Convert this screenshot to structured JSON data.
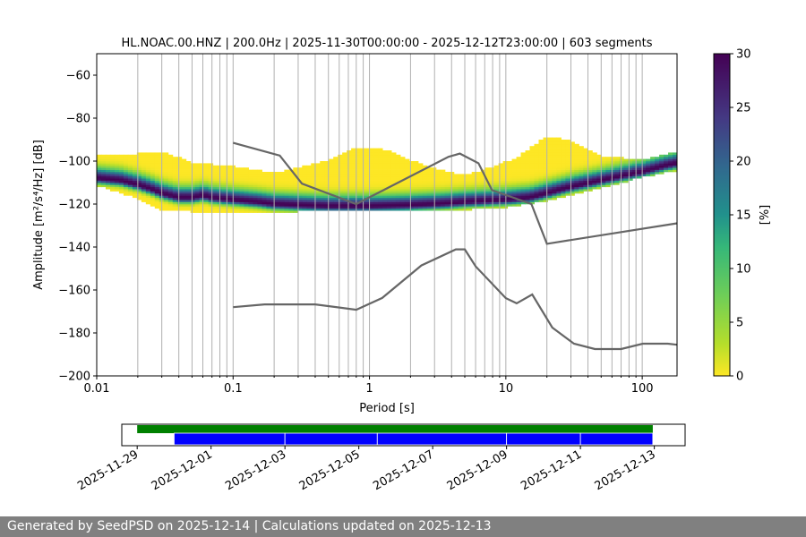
{
  "chart_data": {
    "type": "heatmap",
    "title": "HL.NOAC.00.HNZ | 200.0Hz | 2025-11-30T00:00:00 - 2025-12-12T23:00:00 | 603 segments",
    "xlabel": "Period [s]",
    "ylabel": "Amplitude [m²/s⁴/Hz] [dB]",
    "xscale": "log",
    "xlim": [
      0.01,
      180
    ],
    "ylim": [
      -200,
      -50
    ],
    "x_ticks": [
      {
        "value": 0.01,
        "label": "0.01"
      },
      {
        "value": 0.1,
        "label": "0.1"
      },
      {
        "value": 1,
        "label": "1"
      },
      {
        "value": 10,
        "label": "10"
      },
      {
        "value": 100,
        "label": "100"
      }
    ],
    "y_ticks": [
      -200,
      -180,
      -160,
      -140,
      -120,
      -100,
      -80,
      -60
    ],
    "grid": "vertical minor gridlines on log period axis",
    "colorbar": {
      "label": "[%]",
      "range": [
        0,
        30
      ],
      "ticks": [
        0,
        5,
        10,
        15,
        20,
        25,
        30
      ],
      "colormap": "viridis reversed"
    },
    "psd_mode": [
      [
        0.01,
        -108
      ],
      [
        0.015,
        -109
      ],
      [
        0.02,
        -111
      ],
      [
        0.025,
        -113
      ],
      [
        0.03,
        -115
      ],
      [
        0.04,
        -117
      ],
      [
        0.05,
        -117
      ],
      [
        0.06,
        -116
      ],
      [
        0.07,
        -117
      ],
      [
        0.1,
        -118
      ],
      [
        0.15,
        -119
      ],
      [
        0.2,
        -120
      ],
      [
        0.3,
        -120.5
      ],
      [
        0.5,
        -121
      ],
      [
        1,
        -121
      ],
      [
        2,
        -120.5
      ],
      [
        3,
        -120
      ],
      [
        4,
        -119.5
      ],
      [
        5,
        -119
      ],
      [
        7,
        -118.5
      ],
      [
        10,
        -118
      ],
      [
        15,
        -117
      ],
      [
        20,
        -115
      ],
      [
        30,
        -112
      ],
      [
        50,
        -109
      ],
      [
        70,
        -107
      ],
      [
        100,
        -105
      ],
      [
        150,
        -102
      ],
      [
        180,
        -101
      ]
    ],
    "psd_upper_extent": [
      [
        0.01,
        -97
      ],
      [
        0.02,
        -97
      ],
      [
        0.03,
        -96
      ],
      [
        0.05,
        -101
      ],
      [
        0.1,
        -103
      ],
      [
        0.2,
        -106
      ],
      [
        0.5,
        -100
      ],
      [
        0.8,
        -94
      ],
      [
        1,
        -94
      ],
      [
        1.5,
        -96
      ],
      [
        2,
        -100
      ],
      [
        3,
        -104
      ],
      [
        5,
        -107
      ],
      [
        8,
        -103
      ],
      [
        12,
        -99
      ],
      [
        20,
        -89
      ],
      [
        30,
        -91
      ],
      [
        50,
        -98
      ],
      [
        100,
        -100
      ],
      [
        180,
        -96
      ]
    ],
    "psd_lower_extent": [
      [
        0.01,
        -111
      ],
      [
        0.02,
        -117
      ],
      [
        0.03,
        -123
      ],
      [
        0.05,
        -123
      ],
      [
        0.1,
        -124
      ],
      [
        0.3,
        -123
      ],
      [
        1,
        -123
      ],
      [
        3,
        -123
      ],
      [
        10,
        -121
      ],
      [
        20,
        -118
      ],
      [
        50,
        -112
      ],
      [
        100,
        -107
      ],
      [
        180,
        -104
      ]
    ],
    "noise_models": [
      {
        "name": "",
        "points": [
          [
            0.1,
            -91.5
          ],
          [
            0.22,
            -97.4
          ],
          [
            0.32,
            -110.5
          ],
          [
            0.8,
            -120
          ],
          [
            3.8,
            -98
          ],
          [
            4.6,
            -96.5
          ],
          [
            6.3,
            -101
          ],
          [
            7.9,
            -113.5
          ],
          [
            15.4,
            -120
          ],
          [
            20,
            -138.5
          ],
          [
            354.8,
            -126
          ]
        ]
      },
      {
        "name": "",
        "points": [
          [
            0.1,
            -168
          ],
          [
            0.17,
            -166.7
          ],
          [
            0.4,
            -166.7
          ],
          [
            0.8,
            -169.2
          ],
          [
            1.24,
            -163.7
          ],
          [
            2.4,
            -148.6
          ],
          [
            4.3,
            -141.1
          ],
          [
            5.0,
            -141.1
          ],
          [
            6.0,
            -149
          ],
          [
            10.0,
            -163.8
          ],
          [
            12.0,
            -166.2
          ],
          [
            15.6,
            -162.1
          ],
          [
            21.9,
            -177.5
          ],
          [
            31.6,
            -185
          ],
          [
            45.0,
            -187.5
          ],
          [
            70.0,
            -187.5
          ],
          [
            101.0,
            -185
          ],
          [
            154.0,
            -185
          ],
          [
            328.0,
            -187.5
          ]
        ]
      }
    ],
    "availability": {
      "date_ticks": [
        "2025-11-29",
        "2025-12-01",
        "2025-12-03",
        "2025-12-05",
        "2025-12-07",
        "2025-12-09",
        "2025-12-11",
        "2025-12-13"
      ],
      "x_range": [
        "2025-11-28T14:00:00",
        "2025-12-13T20:00:00"
      ],
      "data_bar": {
        "color": "#008000",
        "start": "2025-11-29T00:00:00",
        "end": "2025-12-12T23:00:00"
      },
      "used_segments": [
        {
          "start": "2025-11-30T00:00:00",
          "end": "2025-12-03T00:00:00"
        },
        {
          "start": "2025-12-03T00:00:00",
          "end": "2025-12-05T12:00:00"
        },
        {
          "start": "2025-12-05T12:00:00",
          "end": "2025-12-09T00:00:00"
        },
        {
          "start": "2025-12-09T00:00:00",
          "end": "2025-12-11T00:00:00"
        },
        {
          "start": "2025-12-11T00:00:00",
          "end": "2025-12-12T23:00:00"
        }
      ],
      "used_color": "#0000ff"
    }
  },
  "footer": {
    "text": "Generated by SeedPSD on 2025-12-14 | Calculations updated on 2025-12-13"
  }
}
